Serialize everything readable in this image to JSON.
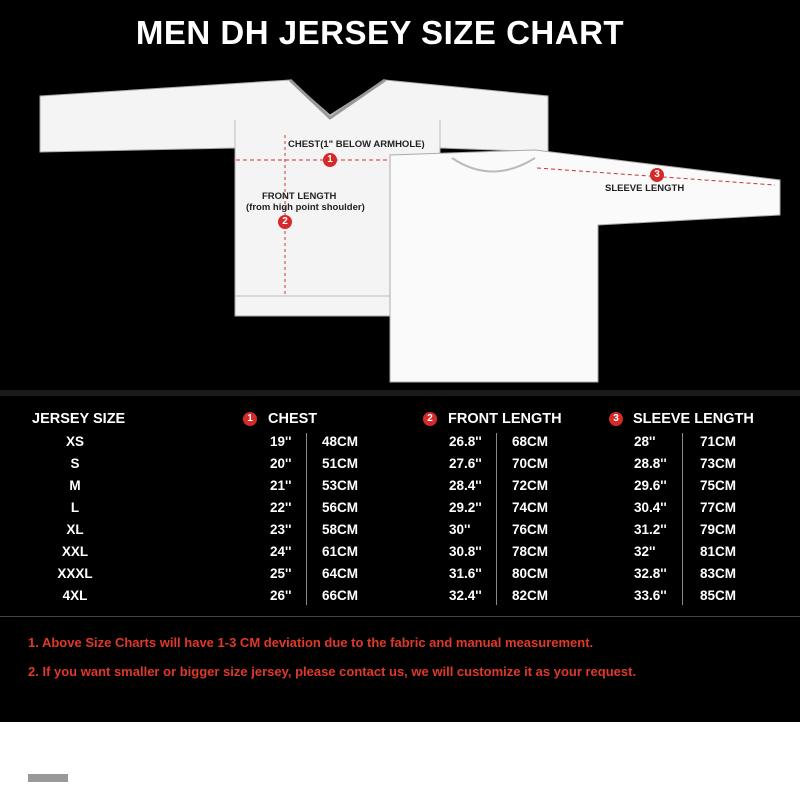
{
  "title": "MEN DH JERSEY SIZE CHART",
  "diagram": {
    "chest_label": "CHEST(1\" BELOW ARMHOLE)",
    "front_length_label": "FRONT LENGTH",
    "front_length_sub": "(from high point shoulder)",
    "sleeve_label": "SLEEVE  LENGTH",
    "markers": [
      "1",
      "2",
      "3"
    ]
  },
  "table": {
    "headers": {
      "size": "JERSEY SIZE",
      "chest": "CHEST",
      "front": "FRONT LENGTH",
      "sleeve": "SLEEVE  LENGTH"
    },
    "rows": [
      {
        "size": "XS",
        "chest_in": "19''",
        "chest_cm": "48CM",
        "front_in": "26.8''",
        "front_cm": "68CM",
        "sleeve_in": "28''",
        "sleeve_cm": "71CM"
      },
      {
        "size": "S",
        "chest_in": "20''",
        "chest_cm": "51CM",
        "front_in": "27.6''",
        "front_cm": "70CM",
        "sleeve_in": "28.8''",
        "sleeve_cm": "73CM"
      },
      {
        "size": "M",
        "chest_in": "21''",
        "chest_cm": "53CM",
        "front_in": "28.4''",
        "front_cm": "72CM",
        "sleeve_in": "29.6''",
        "sleeve_cm": "75CM"
      },
      {
        "size": "L",
        "chest_in": "22''",
        "chest_cm": "56CM",
        "front_in": "29.2''",
        "front_cm": "74CM",
        "sleeve_in": "30.4''",
        "sleeve_cm": "77CM"
      },
      {
        "size": "XL",
        "chest_in": "23''",
        "chest_cm": "58CM",
        "front_in": "30''",
        "front_cm": "76CM",
        "sleeve_in": "31.2''",
        "sleeve_cm": "79CM"
      },
      {
        "size": "XXL",
        "chest_in": "24''",
        "chest_cm": "61CM",
        "front_in": "30.8''",
        "front_cm": "78CM",
        "sleeve_in": "32''",
        "sleeve_cm": "81CM"
      },
      {
        "size": "XXXL",
        "chest_in": "25''",
        "chest_cm": "64CM",
        "front_in": "31.6''",
        "front_cm": "80CM",
        "sleeve_in": "32.8''",
        "sleeve_cm": "83CM"
      },
      {
        "size": "4XL",
        "chest_in": "26''",
        "chest_cm": "66CM",
        "front_in": "32.4''",
        "front_cm": "82CM",
        "sleeve_in": "33.6''",
        "sleeve_cm": "85CM"
      }
    ]
  },
  "notes": [
    "1. Above Size Charts will have 1-3 CM deviation due to the fabric and manual measurement.",
    "2. If you want smaller or bigger size jersey, please contact us, we will customize it as your request."
  ],
  "colors": {
    "accent_red": "#d42a2a",
    "note_red": "#e0382a",
    "background": "#000000"
  }
}
